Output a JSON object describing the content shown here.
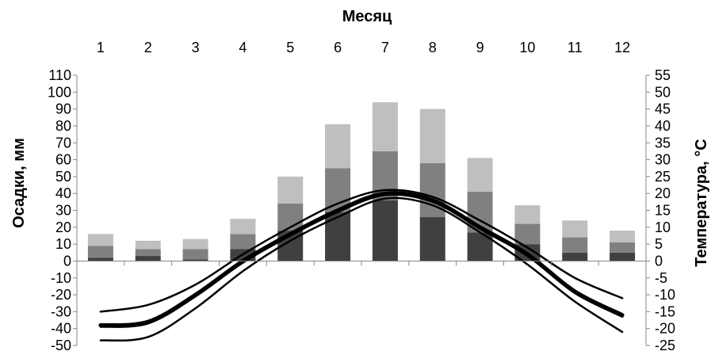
{
  "chart_data": {
    "type": "bar",
    "title": "",
    "x_axis_title_top": "Месяц",
    "categories": [
      "1",
      "2",
      "3",
      "4",
      "5",
      "6",
      "7",
      "8",
      "9",
      "10",
      "11",
      "12"
    ],
    "ylabel": "Осадки, мм",
    "y2label": "Температура, °C",
    "ylim": [
      -50,
      110
    ],
    "ytick_step": 10,
    "y2lim": [
      -25,
      55
    ],
    "y2tick_step": 5,
    "stacked": true,
    "series": [
      {
        "values": [
          2,
          3,
          1,
          7,
          18,
          29,
          36,
          26,
          17,
          10,
          5,
          5
        ],
        "color": "#404040"
      },
      {
        "values": [
          7,
          4,
          6,
          9,
          16,
          26,
          29,
          32,
          24,
          12,
          9,
          6
        ],
        "color": "#808080"
      },
      {
        "values": [
          7,
          5,
          6,
          9,
          16,
          26,
          29,
          32,
          20,
          11,
          10,
          7
        ],
        "color": "#bfbfbf"
      }
    ],
    "temperature_lines": [
      {
        "values": [
          -15,
          -13,
          -7,
          2,
          10,
          17,
          21,
          19,
          12,
          4,
          -5,
          -11
        ],
        "stroke_width": 2.5
      },
      {
        "values": [
          -19,
          -18,
          -10,
          0,
          8,
          15,
          20,
          18,
          10,
          2,
          -9,
          -16
        ],
        "stroke_width": 5
      },
      {
        "values": [
          -19.5,
          -18.5,
          -10.5,
          -0.5,
          7.5,
          14.5,
          19.5,
          17.5,
          9.5,
          1.5,
          -9.5,
          -16.5
        ],
        "stroke_width": 2.5
      },
      {
        "values": [
          -23.5,
          -22.5,
          -14,
          -3,
          6,
          13,
          18.5,
          16.5,
          8.5,
          -1,
          -12,
          -21
        ],
        "stroke_width": 2.5
      }
    ],
    "grid": false,
    "legend": "none"
  }
}
